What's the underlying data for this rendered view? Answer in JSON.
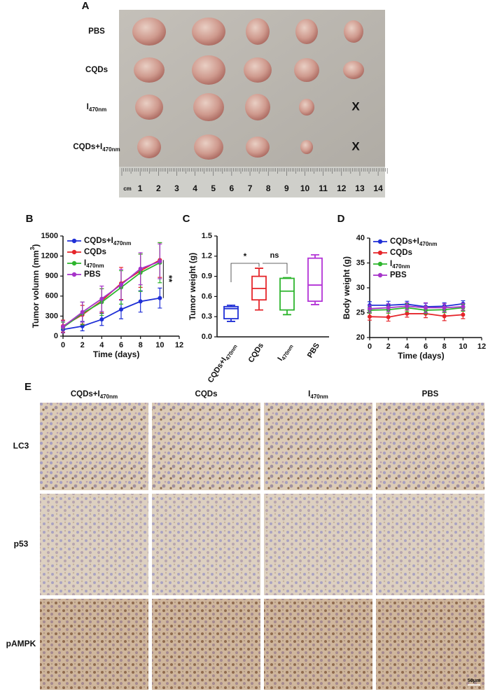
{
  "panels": {
    "a": "A",
    "b": "B",
    "c": "C",
    "d": "D",
    "e": "E"
  },
  "photo": {
    "row_labels": [
      "PBS",
      "CQDs",
      {
        "text": "I",
        "sub": "470nm"
      },
      {
        "text": "CQDs+I",
        "sub": "470nm"
      }
    ],
    "missing_mark": "X",
    "ruler_unit": "cm",
    "ruler_numbers": [
      1,
      2,
      3,
      4,
      5,
      6,
      7,
      8,
      9,
      10,
      11,
      12,
      13,
      14
    ]
  },
  "chart_data": [
    {
      "type": "line",
      "xlabel": "Time (days)",
      "ylabel": {
        "text": "Tumor volumn (mm",
        "sup": "3",
        "after": ")"
      },
      "x": [
        0,
        2,
        4,
        6,
        8,
        10
      ],
      "xlim": [
        0,
        12
      ],
      "xticks": [
        0,
        2,
        4,
        6,
        8,
        10,
        12
      ],
      "ylim": [
        0,
        1500
      ],
      "yticks": [
        0,
        300,
        600,
        900,
        1200,
        1500
      ],
      "series": [
        {
          "name": {
            "text": "CQDs+I",
            "sub": "470nm"
          },
          "color": "#1f2fd6",
          "values": [
            100,
            150,
            250,
            400,
            520,
            570
          ],
          "errors": [
            50,
            70,
            90,
            140,
            160,
            150
          ]
        },
        {
          "name": "CQDs",
          "color": "#e5252a",
          "values": [
            150,
            320,
            530,
            790,
            980,
            1140
          ],
          "errors": [
            90,
            140,
            180,
            240,
            250,
            260
          ]
        },
        {
          "name": {
            "text": "I",
            "sub": "470nm"
          },
          "color": "#2db52d",
          "values": [
            130,
            340,
            510,
            730,
            950,
            1100
          ],
          "errors": [
            80,
            170,
            200,
            250,
            280,
            300
          ]
        },
        {
          "name": "PBS",
          "color": "#a633c9",
          "values": [
            140,
            360,
            560,
            770,
            1010,
            1120
          ],
          "errors": [
            90,
            150,
            190,
            230,
            240,
            260
          ]
        }
      ],
      "annotation": "**"
    },
    {
      "type": "box",
      "ylabel": "Tumor weight (g)",
      "categories": [
        {
          "text": "CQDs+I",
          "sub": "470nm"
        },
        "CQDs",
        {
          "text": "I",
          "sub": "470nm"
        },
        "PBS"
      ],
      "colors": [
        "#1f2fd6",
        "#e5252a",
        "#2db52d",
        "#b333d6"
      ],
      "boxes": [
        {
          "min": 0.23,
          "q1": 0.27,
          "median": 0.42,
          "q3": 0.45,
          "max": 0.47
        },
        {
          "min": 0.4,
          "q1": 0.55,
          "median": 0.72,
          "q3": 0.9,
          "max": 1.02
        },
        {
          "min": 0.33,
          "q1": 0.4,
          "median": 0.68,
          "q3": 0.87,
          "max": 0.88
        },
        {
          "min": 0.48,
          "q1": 0.53,
          "median": 0.77,
          "q3": 1.17,
          "max": 1.22
        }
      ],
      "ylim": [
        0,
        1.5
      ],
      "yticks": [
        {
          "value": 0,
          "label": "0.0"
        },
        0.3,
        0.6,
        0.9,
        1.2,
        1.5
      ],
      "annotations": [
        "*",
        "ns"
      ]
    },
    {
      "type": "line",
      "xlabel": "Time (days)",
      "ylabel": "Body weight (g)",
      "x": [
        0,
        2,
        4,
        6,
        8,
        10
      ],
      "xlim": [
        0,
        12
      ],
      "xticks": [
        0,
        2,
        4,
        6,
        8,
        10,
        12
      ],
      "ylim": [
        20,
        40
      ],
      "yticks": [
        20,
        25,
        30,
        35,
        40
      ],
      "series": [
        {
          "name": {
            "text": "CQDs+I",
            "sub": "470nm"
          },
          "color": "#1f2fd6",
          "values": [
            26.5,
            26.5,
            26.7,
            26.2,
            26.3,
            26.8
          ],
          "errors": [
            0.7,
            0.8,
            0.6,
            0.7,
            0.7,
            0.6
          ]
        },
        {
          "name": "CQDs",
          "color": "#e5252a",
          "values": [
            24.2,
            24.1,
            24.8,
            24.8,
            24.3,
            24.6
          ],
          "errors": [
            0.7,
            0.8,
            0.7,
            0.8,
            0.9,
            0.8
          ]
        },
        {
          "name": {
            "text": "I",
            "sub": "470nm"
          },
          "color": "#2db52d",
          "values": [
            25.5,
            25.6,
            26.0,
            25.5,
            25.6,
            26.0
          ],
          "errors": [
            0.6,
            0.7,
            0.8,
            0.7,
            0.6,
            0.7
          ]
        },
        {
          "name": "PBS",
          "color": "#a633c9",
          "values": [
            25.8,
            26.0,
            26.3,
            26.0,
            26.0,
            26.2
          ],
          "errors": [
            0.7,
            0.8,
            0.7,
            1.0,
            0.8,
            0.7
          ]
        }
      ]
    }
  ],
  "ihc": {
    "columns": [
      {
        "text": "CQDs+I",
        "sub": "470nm"
      },
      "CQDs",
      {
        "text": "I",
        "sub": "470nm"
      },
      "PBS"
    ],
    "rows": [
      "LC3",
      "p53",
      "pAMPK"
    ],
    "scale_bar": "50μm"
  }
}
